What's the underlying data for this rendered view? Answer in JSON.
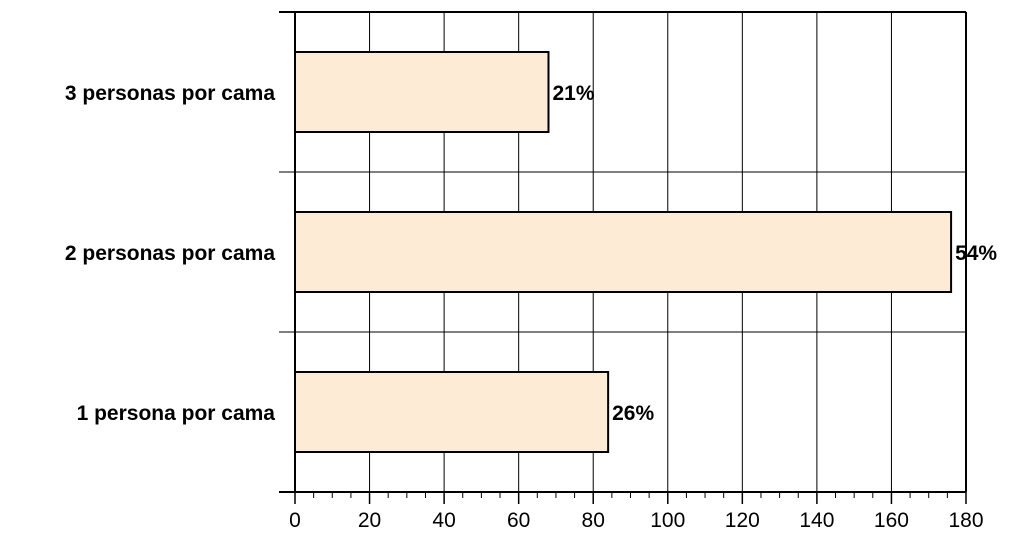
{
  "chart_data": {
    "type": "bar",
    "orientation": "horizontal",
    "title": "",
    "xlabel": "",
    "ylabel": "",
    "categories": [
      "3 personas por cama",
      "2 personas por cama",
      "1 persona por cama"
    ],
    "values": [
      68,
      176,
      84
    ],
    "data_labels": [
      "21%",
      "54%",
      "26%"
    ],
    "xlim": [
      0,
      180
    ],
    "x_ticks": [
      0,
      20,
      40,
      60,
      80,
      100,
      120,
      140,
      160,
      180
    ],
    "grid": true,
    "legend": "none",
    "colors": {
      "bar_fill": "#FDEBD5",
      "bar_stroke": "#000000",
      "grid": "#000000",
      "axis": "#000000"
    }
  }
}
